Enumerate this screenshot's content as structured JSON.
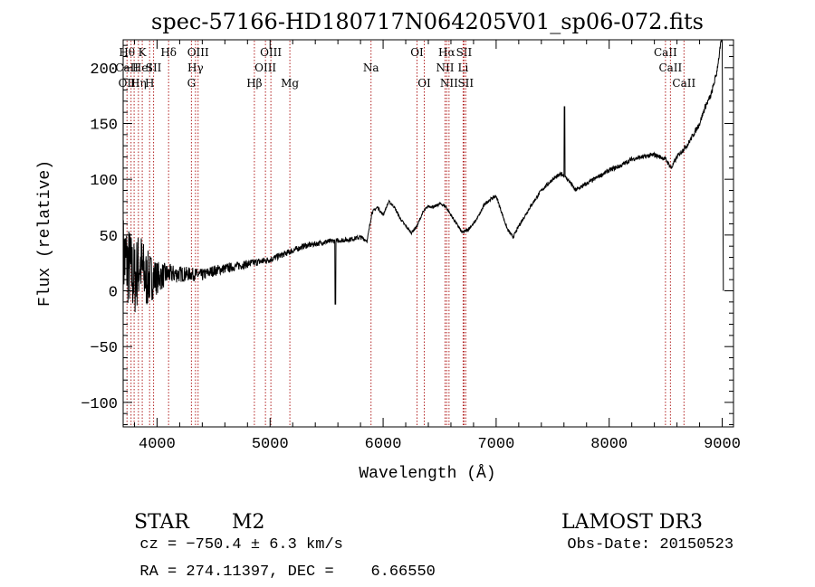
{
  "colors": {
    "spectrum": "#000000",
    "line_marker": "#b22222",
    "axis": "#000000",
    "background": "#ffffff"
  },
  "chart_data": {
    "type": "line",
    "title": "spec-57166-HD180717N064205V01_sp06-072.fits",
    "xlabel": "Wavelength (Å)",
    "ylabel": "Flux (relative)",
    "xlim": [
      3700,
      9100
    ],
    "ylim": [
      -122,
      225
    ],
    "xticks": [
      4000,
      5000,
      6000,
      7000,
      8000,
      9000
    ],
    "yticks": [
      -100,
      -50,
      0,
      50,
      100,
      150,
      200
    ],
    "grid": false,
    "series": [
      {
        "name": "spectrum",
        "knots": [
          [
            3700,
            30
          ],
          [
            3760,
            20
          ],
          [
            3800,
            10
          ],
          [
            3850,
            25
          ],
          [
            3900,
            10
          ],
          [
            3950,
            12
          ],
          [
            4000,
            12
          ],
          [
            4100,
            15
          ],
          [
            4200,
            15
          ],
          [
            4300,
            15
          ],
          [
            4400,
            14
          ],
          [
            4500,
            18
          ],
          [
            4600,
            20
          ],
          [
            4700,
            22
          ],
          [
            4800,
            24
          ],
          [
            4900,
            26
          ],
          [
            5000,
            28
          ],
          [
            5100,
            32
          ],
          [
            5200,
            36
          ],
          [
            5300,
            40
          ],
          [
            5400,
            42
          ],
          [
            5500,
            44
          ],
          [
            5600,
            45
          ],
          [
            5700,
            46
          ],
          [
            5800,
            48
          ],
          [
            5860,
            45
          ],
          [
            5900,
            70
          ],
          [
            5950,
            75
          ],
          [
            6000,
            68
          ],
          [
            6050,
            80
          ],
          [
            6100,
            75
          ],
          [
            6150,
            65
          ],
          [
            6200,
            58
          ],
          [
            6250,
            52
          ],
          [
            6300,
            58
          ],
          [
            6350,
            70
          ],
          [
            6400,
            76
          ],
          [
            6450,
            75
          ],
          [
            6500,
            78
          ],
          [
            6550,
            76
          ],
          [
            6600,
            68
          ],
          [
            6650,
            60
          ],
          [
            6700,
            52
          ],
          [
            6750,
            55
          ],
          [
            6800,
            60
          ],
          [
            6850,
            68
          ],
          [
            6900,
            78
          ],
          [
            6950,
            82
          ],
          [
            7000,
            85
          ],
          [
            7050,
            70
          ],
          [
            7100,
            55
          ],
          [
            7150,
            48
          ],
          [
            7200,
            58
          ],
          [
            7300,
            75
          ],
          [
            7400,
            90
          ],
          [
            7500,
            100
          ],
          [
            7580,
            105
          ],
          [
            7650,
            98
          ],
          [
            7700,
            90
          ],
          [
            7800,
            96
          ],
          [
            7900,
            102
          ],
          [
            8000,
            108
          ],
          [
            8100,
            112
          ],
          [
            8200,
            118
          ],
          [
            8300,
            120
          ],
          [
            8400,
            122
          ],
          [
            8500,
            118
          ],
          [
            8550,
            110
          ],
          [
            8600,
            120
          ],
          [
            8700,
            132
          ],
          [
            8800,
            150
          ],
          [
            8850,
            165
          ],
          [
            8900,
            175
          ],
          [
            8950,
            195
          ],
          [
            9000,
            230
          ],
          [
            9010,
            0
          ]
        ],
        "noise": [
          [
            3700,
            40
          ],
          [
            3800,
            35
          ],
          [
            3900,
            28
          ],
          [
            4000,
            15
          ],
          [
            4100,
            9
          ],
          [
            4300,
            6
          ],
          [
            4500,
            5
          ],
          [
            4700,
            4
          ],
          [
            5000,
            3
          ],
          [
            5400,
            2.5
          ],
          [
            5800,
            2
          ],
          [
            6000,
            1.2
          ],
          [
            7000,
            1.5
          ],
          [
            8000,
            2
          ],
          [
            8500,
            2
          ],
          [
            9000,
            3
          ]
        ],
        "features": [
          {
            "x": 5577,
            "y": -12,
            "note": "sky line dip"
          },
          {
            "x": 7605,
            "y": 165,
            "note": "spike"
          }
        ]
      }
    ],
    "lines": [
      {
        "wl": 3734,
        "labels": [
          {
            "text": "Hθ",
            "row": 0
          },
          {
            "text": "CaII",
            "row": 1
          },
          {
            "text": "OII",
            "row": 2
          }
        ]
      },
      {
        "wl": 3770,
        "labels": []
      },
      {
        "wl": 3797,
        "labels": []
      },
      {
        "wl": 3835,
        "labels": [
          {
            "text": "Hη",
            "row": 2
          }
        ]
      },
      {
        "wl": 3869,
        "labels": [
          {
            "text": "K",
            "row": 0
          },
          {
            "text": "HeI",
            "row": 1
          }
        ]
      },
      {
        "wl": 3934,
        "labels": [
          {
            "text": "H",
            "row": 2
          }
        ]
      },
      {
        "wl": 3969,
        "labels": [
          {
            "text": "SII",
            "row": 1
          }
        ]
      },
      {
        "wl": 4102,
        "labels": [
          {
            "text": "Hδ",
            "row": 0
          }
        ]
      },
      {
        "wl": 4304,
        "labels": [
          {
            "text": "G",
            "row": 2
          }
        ]
      },
      {
        "wl": 4340,
        "labels": [
          {
            "text": "Hγ",
            "row": 1
          }
        ]
      },
      {
        "wl": 4363,
        "labels": [
          {
            "text": "OIII",
            "row": 0
          }
        ]
      },
      {
        "wl": 4861,
        "labels": [
          {
            "text": "Hβ",
            "row": 2
          }
        ]
      },
      {
        "wl": 4959,
        "labels": [
          {
            "text": "OIII",
            "row": 1
          }
        ]
      },
      {
        "wl": 5007,
        "labels": [
          {
            "text": "OIII",
            "row": 0
          }
        ]
      },
      {
        "wl": 5175,
        "labels": [
          {
            "text": "Mg",
            "row": 2
          }
        ]
      },
      {
        "wl": 5893,
        "labels": [
          {
            "text": "Na",
            "row": 1
          }
        ]
      },
      {
        "wl": 6300,
        "labels": [
          {
            "text": "OI",
            "row": 0
          }
        ]
      },
      {
        "wl": 6364,
        "labels": [
          {
            "text": "OI",
            "row": 2
          }
        ]
      },
      {
        "wl": 6548,
        "labels": [
          {
            "text": "NII",
            "row": 1
          }
        ]
      },
      {
        "wl": 6563,
        "labels": [
          {
            "text": "Hα",
            "row": 0
          }
        ]
      },
      {
        "wl": 6583,
        "labels": [
          {
            "text": "NII",
            "row": 2
          }
        ]
      },
      {
        "wl": 6708,
        "labels": [
          {
            "text": "Li",
            "row": 1
          }
        ]
      },
      {
        "wl": 6716,
        "labels": [
          {
            "text": "SII",
            "row": 0
          }
        ]
      },
      {
        "wl": 6731,
        "labels": [
          {
            "text": "SII",
            "row": 2
          }
        ]
      },
      {
        "wl": 8498,
        "labels": [
          {
            "text": "CaII",
            "row": 0
          }
        ]
      },
      {
        "wl": 8542,
        "labels": [
          {
            "text": "CaII",
            "row": 1
          }
        ]
      },
      {
        "wl": 8662,
        "labels": [
          {
            "text": "CaII",
            "row": 2
          }
        ]
      }
    ]
  },
  "info": {
    "object_class": "STAR",
    "subclass": "M2",
    "survey": "LAMOST DR3",
    "redshift": "cz = −750.4 ± 6.3 km/s",
    "obs_date": "Obs-Date: 20150523",
    "coords": "RA = 274.11397, DEC =    6.66550"
  }
}
